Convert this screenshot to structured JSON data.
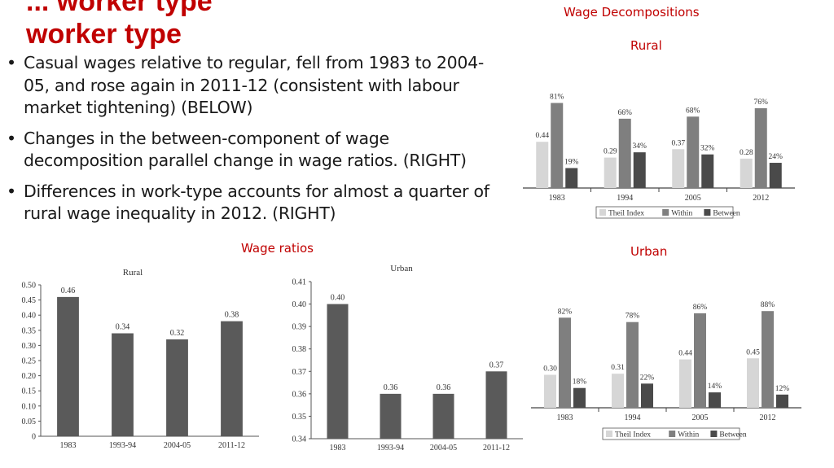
{
  "slide": {
    "title_lines": [
      "... worker type",
      "worker type"
    ],
    "bullets": [
      "Casual wages relative to regular, fell from 1983 to 2004-05, and rose again in 2011-12 (consistent with labour market tightening) (BELOW)",
      "Changes in the between-component of wage decomposition parallel change in wage ratios. (RIGHT)",
      "Differences in work-type accounts for almost a quarter of rural wage inequality in 2012. (RIGHT)"
    ],
    "bullet_glyph": "•",
    "captions": {
      "wage_ratios": "Wage ratios",
      "wage_decompositions": "Wage Decompositions",
      "rural": "Rural",
      "urban": "Urban"
    }
  },
  "colors": {
    "accent": "#c00000",
    "bar_dark": "#5a5a5a",
    "theil": "#d6d6d6",
    "within": "#7f7f7f",
    "between": "#4a4a4a"
  },
  "chart_data": [
    {
      "type": "bar",
      "title": "Rural",
      "categories": [
        "1983",
        "1993-94",
        "2004-05",
        "2011-12"
      ],
      "values": [
        0.46,
        0.34,
        0.32,
        0.38
      ],
      "data_labels": [
        "0.46",
        "0.34",
        "0.32",
        "0.38"
      ],
      "ylim": [
        0,
        0.5
      ],
      "yticks": [
        "0",
        "0.05",
        "0.10",
        "0.15",
        "0.20",
        "0.25",
        "0.30",
        "0.35",
        "0.40",
        "0.45",
        "0.50"
      ]
    },
    {
      "type": "bar",
      "title": "Urban",
      "categories": [
        "1983",
        "1993-94",
        "2004-05",
        "2011-12"
      ],
      "values": [
        0.4,
        0.36,
        0.36,
        0.37
      ],
      "data_labels": [
        "0.40",
        "0.36",
        "0.36",
        "0.37"
      ],
      "ylim": [
        0.34,
        0.41
      ],
      "yticks": [
        "0.34",
        "0.35",
        "0.36",
        "0.37",
        "0.38",
        "0.39",
        "0.40",
        "0.41"
      ]
    },
    {
      "type": "bar",
      "categories": [
        "1983",
        "1994",
        "2005",
        "2012"
      ],
      "series": [
        {
          "name": "Theil Index",
          "values": [
            0.44,
            0.29,
            0.37,
            0.28
          ],
          "labels": [
            "0.44",
            "0.29",
            "0.37",
            "0.28"
          ]
        },
        {
          "name": "Within",
          "values": [
            81,
            66,
            68,
            76
          ],
          "labels": [
            "81%",
            "66%",
            "68%",
            "76%"
          ]
        },
        {
          "name": "Between",
          "values": [
            19,
            34,
            32,
            24
          ],
          "labels": [
            "19%",
            "34%",
            "32%",
            "24%"
          ]
        }
      ],
      "legend": "bottom"
    },
    {
      "type": "bar",
      "categories": [
        "1983",
        "1994",
        "2005",
        "2012"
      ],
      "series": [
        {
          "name": "Theil Index",
          "values": [
            0.3,
            0.31,
            0.44,
            0.45
          ],
          "labels": [
            "0.30",
            "0.31",
            "0.44",
            "0.45"
          ]
        },
        {
          "name": "Within",
          "values": [
            82,
            78,
            86,
            88
          ],
          "labels": [
            "82%",
            "78%",
            "86%",
            "88%"
          ]
        },
        {
          "name": "Between",
          "values": [
            18,
            22,
            14,
            12
          ],
          "labels": [
            "18%",
            "22%",
            "14%",
            "12%"
          ]
        }
      ],
      "legend": "bottom"
    }
  ]
}
